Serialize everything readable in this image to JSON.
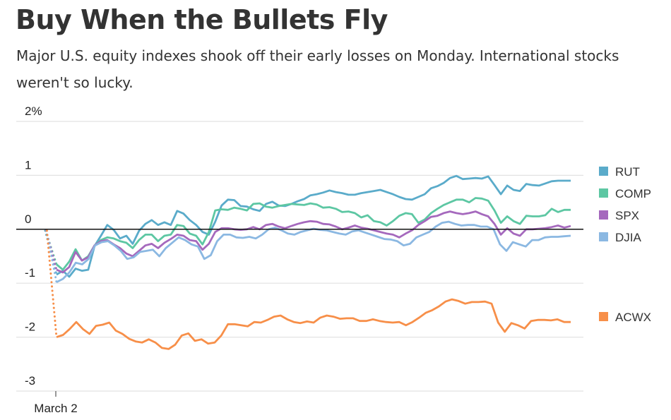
{
  "title": "Buy When the Bullets Fly",
  "subtitle": "Major U.S. equity indexes shook off their early losses on Monday. International stocks weren't so lucky.",
  "chart_data": {
    "type": "line",
    "title": "Buy When the Bullets Fly",
    "xlabel": "",
    "ylabel": "",
    "x_tick_labels": [
      "March 2"
    ],
    "y_ticks": [
      {
        "value": 2,
        "label": "2%"
      },
      {
        "value": 1,
        "label": "1"
      },
      {
        "value": 0,
        "label": "0"
      },
      {
        "value": -1,
        "label": "-1"
      },
      {
        "value": -2,
        "label": "-2"
      },
      {
        "value": -3,
        "label": "-3"
      }
    ],
    "ylim": [
      -3,
      2
    ],
    "grid": true,
    "legend_placement": "right",
    "open_value": 0,
    "series": [
      {
        "name": "RUT",
        "color": "#5aabca",
        "values": [
          -0.84,
          -0.77,
          -0.88,
          -0.73,
          -0.77,
          -0.75,
          -0.31,
          -0.12,
          0.08,
          -0.01,
          -0.17,
          -0.12,
          -0.27,
          -0.03,
          0.1,
          0.17,
          0.08,
          0.13,
          0.08,
          0.34,
          0.29,
          0.17,
          0.08,
          -0.05,
          -0.1,
          0.14,
          0.44,
          0.55,
          0.54,
          0.43,
          0.42,
          0.37,
          0.34,
          0.47,
          0.51,
          0.44,
          0.43,
          0.47,
          0.52,
          0.56,
          0.63,
          0.65,
          0.68,
          0.72,
          0.69,
          0.67,
          0.64,
          0.64,
          0.67,
          0.69,
          0.71,
          0.73,
          0.69,
          0.65,
          0.6,
          0.56,
          0.55,
          0.6,
          0.65,
          0.76,
          0.8,
          0.86,
          0.95,
          0.99,
          0.93,
          0.94,
          0.95,
          0.94,
          0.98,
          0.82,
          0.65,
          0.81,
          0.73,
          0.71,
          0.84,
          0.82,
          0.81,
          0.85,
          0.89,
          0.9,
          0.9,
          0.9
        ]
      },
      {
        "name": "COMP",
        "color": "#5dc7a3",
        "values": [
          -0.65,
          -0.75,
          -0.6,
          -0.37,
          -0.58,
          -0.5,
          -0.3,
          -0.2,
          -0.15,
          -0.17,
          -0.22,
          -0.25,
          -0.35,
          -0.2,
          -0.1,
          -0.1,
          -0.22,
          -0.12,
          -0.1,
          0.08,
          0.06,
          -0.08,
          -0.12,
          -0.28,
          -0.05,
          0.35,
          0.37,
          0.36,
          0.4,
          0.38,
          0.35,
          0.47,
          0.48,
          0.42,
          0.4,
          0.43,
          0.45,
          0.47,
          0.46,
          0.45,
          0.48,
          0.46,
          0.4,
          0.41,
          0.38,
          0.32,
          0.33,
          0.3,
          0.22,
          0.26,
          0.15,
          0.13,
          0.07,
          0.15,
          0.25,
          0.3,
          0.28,
          0.12,
          0.18,
          0.3,
          0.38,
          0.45,
          0.5,
          0.55,
          0.55,
          0.5,
          0.58,
          0.57,
          0.53,
          0.35,
          0.12,
          0.24,
          0.15,
          0.1,
          0.25,
          0.24,
          0.24,
          0.26,
          0.38,
          0.32,
          0.36,
          0.36
        ]
      },
      {
        "name": "SPX",
        "color": "#a569bd",
        "values": [
          -0.75,
          -0.8,
          -0.7,
          -0.42,
          -0.58,
          -0.52,
          -0.3,
          -0.22,
          -0.2,
          -0.28,
          -0.35,
          -0.45,
          -0.5,
          -0.4,
          -0.3,
          -0.27,
          -0.35,
          -0.25,
          -0.18,
          -0.1,
          -0.12,
          -0.2,
          -0.22,
          -0.38,
          -0.27,
          -0.05,
          0.02,
          0.02,
          0.0,
          -0.01,
          0.0,
          0.04,
          0.0,
          0.08,
          0.1,
          0.05,
          0.02,
          0.06,
          0.1,
          0.13,
          0.15,
          0.14,
          0.1,
          0.09,
          0.05,
          0.0,
          0.03,
          0.07,
          0.03,
          0.01,
          -0.02,
          -0.05,
          -0.08,
          -0.1,
          -0.15,
          -0.08,
          -0.02,
          0.08,
          0.15,
          0.23,
          0.25,
          0.3,
          0.33,
          0.3,
          0.28,
          0.3,
          0.33,
          0.28,
          0.24,
          0.1,
          -0.1,
          0.02,
          -0.08,
          -0.12,
          0.0,
          0.0,
          0.01,
          0.02,
          0.04,
          0.07,
          0.03,
          0.06
        ]
      },
      {
        "name": "DJIA",
        "color": "#8bb8e2",
        "values": [
          -0.98,
          -0.92,
          -0.8,
          -0.62,
          -0.65,
          -0.55,
          -0.3,
          -0.24,
          -0.22,
          -0.3,
          -0.4,
          -0.55,
          -0.52,
          -0.42,
          -0.4,
          -0.38,
          -0.5,
          -0.35,
          -0.25,
          -0.15,
          -0.2,
          -0.28,
          -0.32,
          -0.55,
          -0.48,
          -0.22,
          -0.1,
          -0.1,
          -0.15,
          -0.16,
          -0.14,
          -0.17,
          -0.1,
          0.0,
          0.03,
          -0.02,
          -0.08,
          -0.1,
          -0.05,
          -0.02,
          0.01,
          -0.01,
          -0.02,
          -0.05,
          -0.08,
          -0.1,
          -0.04,
          -0.02,
          -0.06,
          -0.1,
          -0.14,
          -0.18,
          -0.19,
          -0.22,
          -0.3,
          -0.27,
          -0.15,
          -0.1,
          -0.05,
          0.05,
          0.12,
          0.14,
          0.1,
          0.07,
          0.08,
          0.08,
          0.05,
          0.05,
          0.0,
          -0.28,
          -0.4,
          -0.24,
          -0.28,
          -0.32,
          -0.2,
          -0.2,
          -0.15,
          -0.14,
          -0.14,
          -0.13,
          -0.12
        ]
      },
      {
        "name": "ACWX",
        "color": "#f78f49",
        "values": [
          -2.0,
          -1.96,
          -1.85,
          -1.72,
          -1.85,
          -1.94,
          -1.79,
          -1.77,
          -1.73,
          -1.88,
          -1.94,
          -2.03,
          -2.08,
          -2.1,
          -2.04,
          -2.1,
          -2.2,
          -2.22,
          -2.14,
          -1.97,
          -1.93,
          -2.07,
          -2.04,
          -2.12,
          -2.1,
          -1.97,
          -1.76,
          -1.76,
          -1.78,
          -1.8,
          -1.72,
          -1.73,
          -1.68,
          -1.62,
          -1.6,
          -1.67,
          -1.72,
          -1.74,
          -1.71,
          -1.73,
          -1.64,
          -1.6,
          -1.62,
          -1.66,
          -1.65,
          -1.65,
          -1.7,
          -1.7,
          -1.67,
          -1.7,
          -1.72,
          -1.73,
          -1.72,
          -1.78,
          -1.72,
          -1.64,
          -1.55,
          -1.5,
          -1.43,
          -1.34,
          -1.3,
          -1.33,
          -1.38,
          -1.35,
          -1.35,
          -1.34,
          -1.38,
          -1.73,
          -1.9,
          -1.74,
          -1.78,
          -1.84,
          -1.7,
          -1.68,
          -1.68,
          -1.69,
          -1.67,
          -1.72,
          -1.72
        ]
      }
    ]
  }
}
